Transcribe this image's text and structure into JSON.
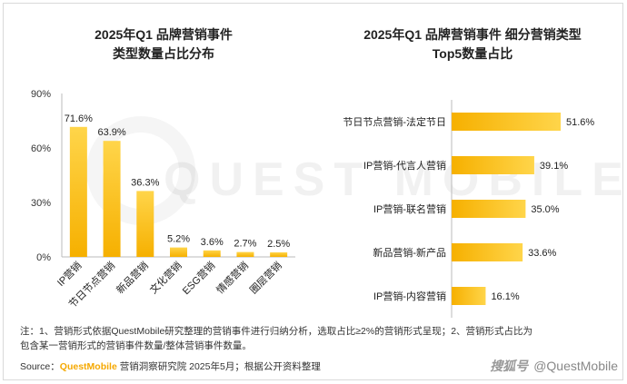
{
  "titles": {
    "left": [
      "2025年Q1 品牌营销事件",
      "类型数量占比分布"
    ],
    "right": [
      "2025年Q1 品牌营销事件 细分营销类型",
      "Top5数量占比"
    ]
  },
  "chart_data": [
    {
      "type": "bar",
      "orientation": "vertical",
      "title": "2025年Q1 品牌营销事件 类型数量占比分布",
      "categories": [
        "IP营销",
        "节日节点营销",
        "新品营销",
        "文化营销",
        "ESG营销",
        "情感营销",
        "圈层营销"
      ],
      "values": [
        71.6,
        63.9,
        36.3,
        5.2,
        3.6,
        2.7,
        2.5
      ],
      "data_labels": [
        "71.6%",
        "63.9%",
        "36.3%",
        "5.2%",
        "3.6%",
        "2.7%",
        "2.5%"
      ],
      "yticks": [
        "0%",
        "30%",
        "60%",
        "90%"
      ],
      "ylim": [
        0,
        90
      ],
      "grid": false,
      "bar_color": "#f6b700"
    },
    {
      "type": "bar",
      "orientation": "horizontal",
      "title": "2025年Q1 品牌营销事件 细分营销类型 Top5数量占比",
      "categories": [
        "节日节点营销-法定节日",
        "IP营销-代言人营销",
        "IP营销-联名营销",
        "新品营销-新产品",
        "IP营销-内容营销"
      ],
      "values": [
        51.6,
        39.1,
        35.0,
        33.6,
        16.1
      ],
      "data_labels": [
        "51.6%",
        "39.1%",
        "35.0%",
        "33.6%",
        "16.1%"
      ],
      "grid": false,
      "bar_color": "#f6b700"
    }
  ],
  "footnote": [
    "注：1、营销形式依据QuestMobile研究整理的营销事件进行归纳分析，选取占比≥2%的营销形式呈现；2、营销形式占比为",
    "包含某一营销形式的营销事件数量/整体营销事件数量。"
  ],
  "source": {
    "label": "Source：",
    "brand": "QuestMobile",
    "rest": " 营销洞察研究院 2025年5月；根据公开资料整理"
  },
  "credit": {
    "handwriting": "搜狐号",
    "handle": "@QuestMobile"
  },
  "watermark": "QUEST MOBILE",
  "colors": {
    "bar": "#f6b700",
    "bar_light": "#ffd54a",
    "axis": "#999999"
  }
}
